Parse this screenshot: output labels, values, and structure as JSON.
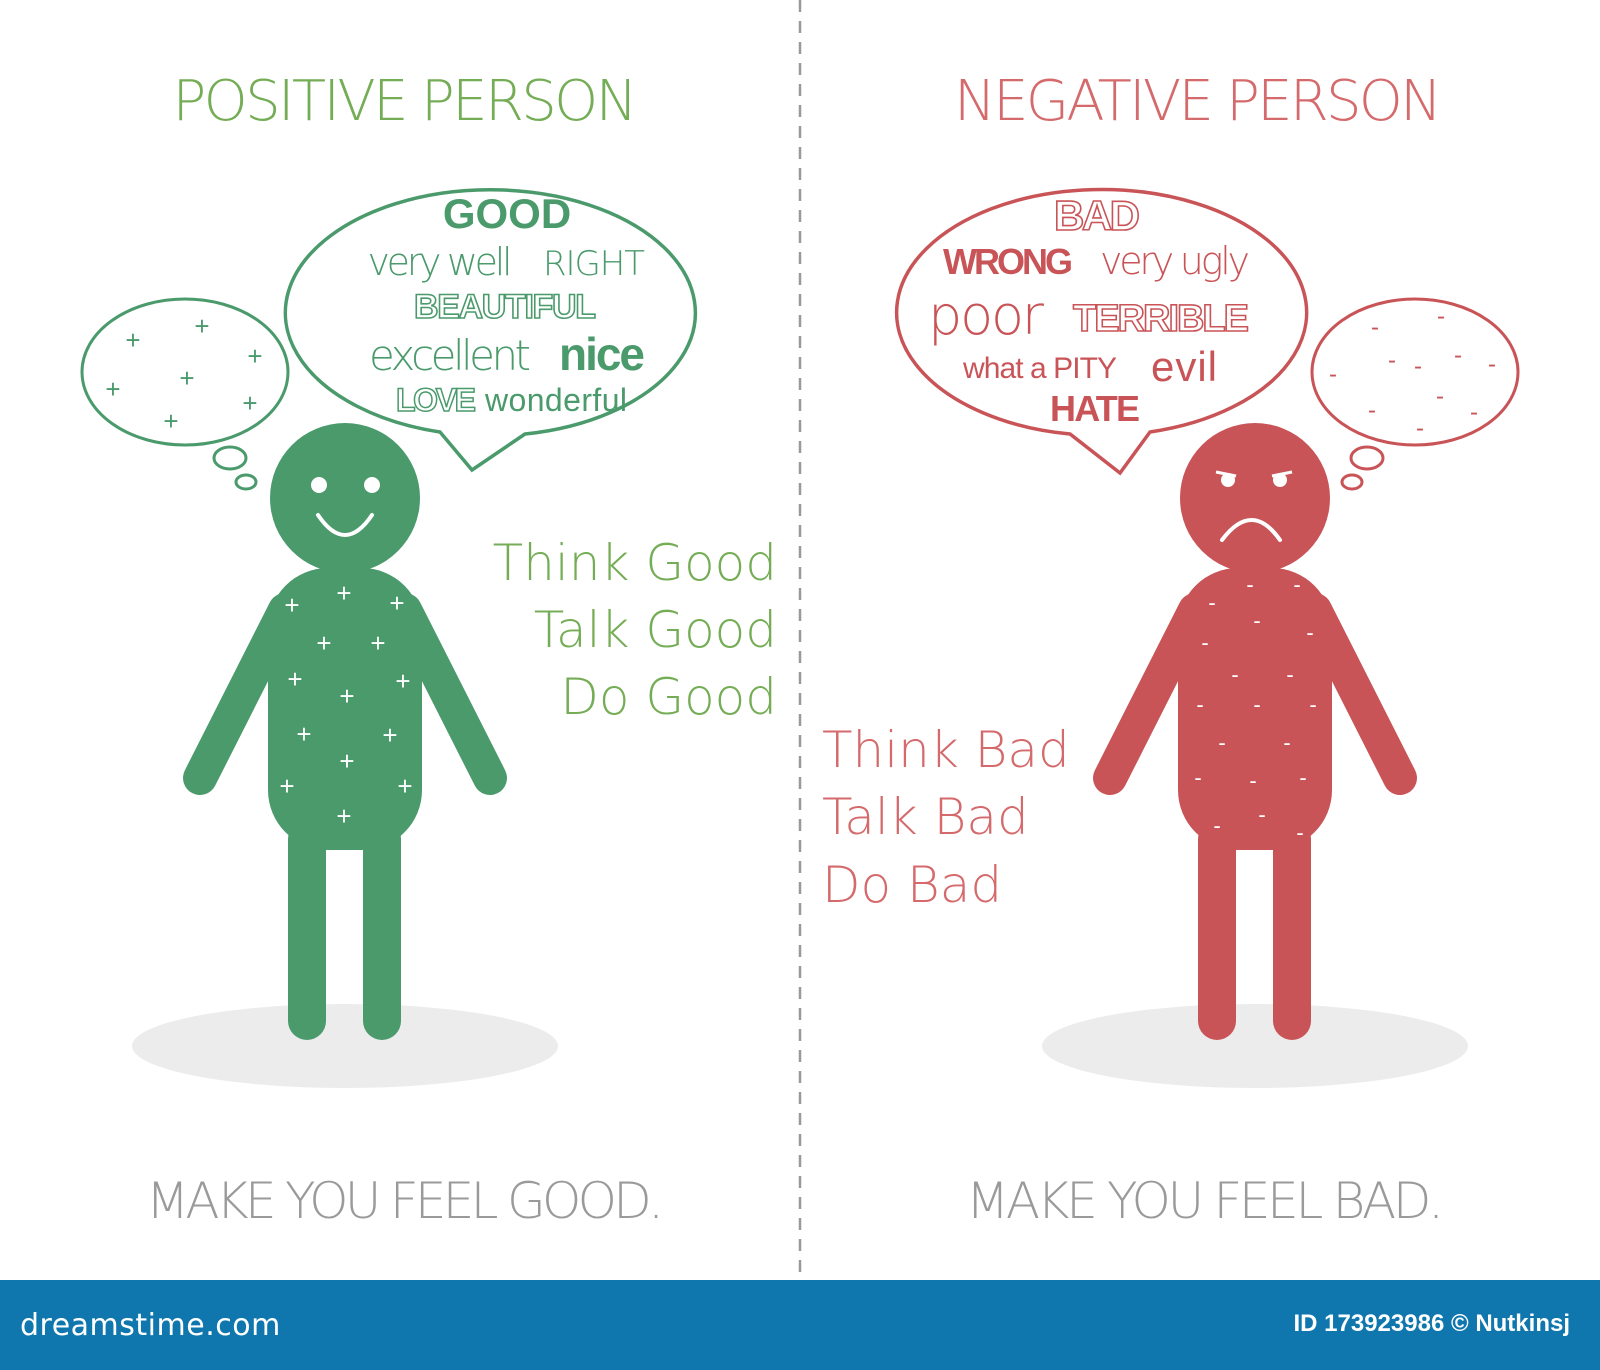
{
  "colors": {
    "positive_figure": "#4a9a6c",
    "positive_text": "#75ad56",
    "negative_figure": "#c95457",
    "negative_text": "#d46a6c",
    "caption_gray": "#9a9a9a",
    "shadow": "#ececec",
    "footer_bg": "#0f77ae"
  },
  "positive": {
    "title": "POSITIVE PERSON",
    "speech_words": {
      "good": "GOOD",
      "very_well": "very well",
      "right": "RIGHT",
      "beautiful": "BEAUTIFUL",
      "excellent": "excellent",
      "nice": "nice",
      "love": "LOVE",
      "wonderful": "wonderful"
    },
    "thought_symbol": "+",
    "mantra": [
      "Think Good",
      "Talk Good",
      "Do Good"
    ],
    "caption": "MAKE YOU FEEL GOOD.",
    "face": "smile"
  },
  "negative": {
    "title": "NEGATIVE PERSON",
    "speech_words": {
      "bad": "BAD",
      "wrong": "WRONG",
      "very_ugly": "very ugly",
      "poor": "poor",
      "terrible": "TERRIBLE",
      "what_a_pity": "what a PITY",
      "evil": "evil",
      "hate": "HATE"
    },
    "thought_symbol": "-",
    "mantra": [
      "Think Bad",
      "Talk Bad",
      "Do Bad"
    ],
    "caption": "MAKE YOU FEEL BAD.",
    "face": "frown"
  },
  "footer": {
    "logo": "dreamstime.com",
    "credit": "ID 173923986 © Nutkinsj"
  }
}
